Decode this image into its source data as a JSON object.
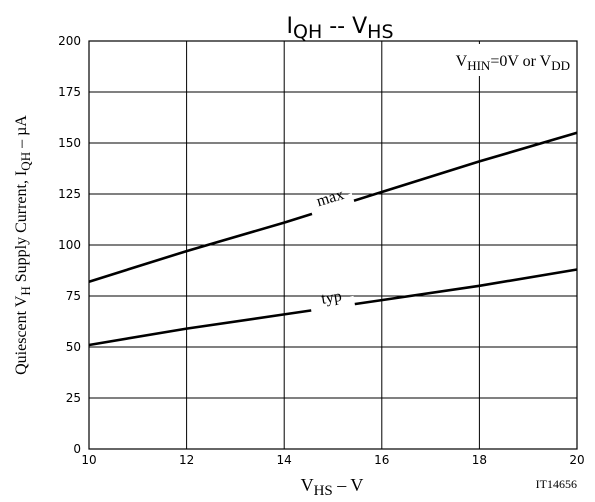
{
  "chart_data": {
    "type": "line",
    "title": {
      "main": "I",
      "sub1": "QH",
      "sep": " -- V",
      "sub2": "HS"
    },
    "xlabel": {
      "main": "V",
      "sub": "HS",
      "rest": " – V"
    },
    "ylabel": {
      "p1": "Quiescent V",
      "s1": "H",
      "p2": " Supply Current, I",
      "s2": "QH",
      "p3": " – µA"
    },
    "legend_note": {
      "p1": "V",
      "s1": "HIN",
      "p2": "=0V or V",
      "s2": "DD"
    },
    "figure_id": "IT14656",
    "xlim": [
      10,
      20
    ],
    "ylim": [
      0,
      200
    ],
    "x_ticks": [
      "10",
      "12",
      "14",
      "16",
      "18",
      "20"
    ],
    "y_ticks": [
      "0",
      "25",
      "50",
      "75",
      "100",
      "125",
      "150",
      "175",
      "200"
    ],
    "grid": true,
    "series": [
      {
        "name": "max",
        "x": [
          10,
          12,
          14,
          16,
          18,
          20
        ],
        "y": [
          82,
          97,
          111,
          126,
          141,
          155
        ]
      },
      {
        "name": "typ",
        "x": [
          10,
          12,
          14,
          16,
          18,
          20
        ],
        "y": [
          51,
          59,
          66,
          73,
          80,
          88
        ]
      }
    ]
  }
}
